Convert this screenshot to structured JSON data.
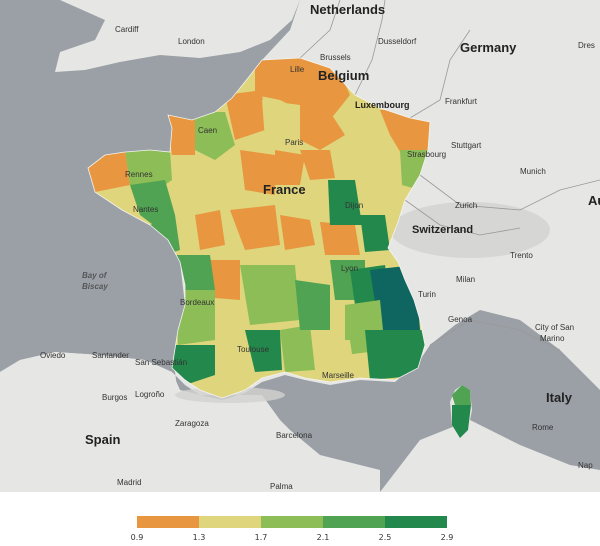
{
  "map": {
    "labels": {
      "countries": {
        "france": "France",
        "belgium": "Belgium",
        "germany": "Germany",
        "switzerland": "Switzerland",
        "spain": "Spain",
        "italy": "Italy",
        "netherlands": "Netherlands",
        "luxembourg": "Luxembourg",
        "austria_partial": "Au"
      },
      "sea": {
        "line1": "Bay of",
        "line2": "Biscay"
      },
      "cities": {
        "cardiff": "Cardiff",
        "london": "London",
        "lille": "Lille",
        "brussels": "Brussels",
        "dusseldorf": "Dusseldorf",
        "frankfurt": "Frankfurt",
        "stuttgart": "Stuttgart",
        "munich": "Munich",
        "strasbourg": "Strasbourg",
        "paris": "Paris",
        "caen": "Caen",
        "rennes": "Rennes",
        "nantes": "Nantes",
        "dijon": "Dijon",
        "zurich": "Zurich",
        "trento": "Trento",
        "milan": "Milan",
        "turin": "Turin",
        "lyon": "Lyon",
        "genoa": "Genoa",
        "bordeaux": "Bordeaux",
        "toulouse": "Toulouse",
        "marseille": "Marseille",
        "oviedo": "Oviedo",
        "santander": "Santander",
        "san_sebastian": "San Sebastián",
        "burgos": "Burgos",
        "logrono": "Logroño",
        "zaragoza": "Zaragoza",
        "barcelona": "Barcelona",
        "madrid": "Madrid",
        "palma": "Palma",
        "rome": "Rome",
        "city_of_san_marino": "City of San",
        "marino": "Marino",
        "desden_partial": "Dres",
        "naples_partial": "Nap"
      }
    },
    "colors": {
      "sea": "#9aa0a6",
      "land": "#e6e6e4",
      "class1": "#e8963f",
      "class2": "#dfd57d",
      "class3": "#8dbd57",
      "class4": "#4fa352",
      "class5": "#23884c",
      "class6": "#0f6660"
    }
  },
  "legend": {
    "ticks": [
      "0.9",
      "1.3",
      "1.7",
      "2.1",
      "2.5",
      "2.9"
    ],
    "colors": [
      "#e8963f",
      "#dfd57d",
      "#8dbd57",
      "#4fa352",
      "#23884c",
      "#0f6660"
    ]
  }
}
